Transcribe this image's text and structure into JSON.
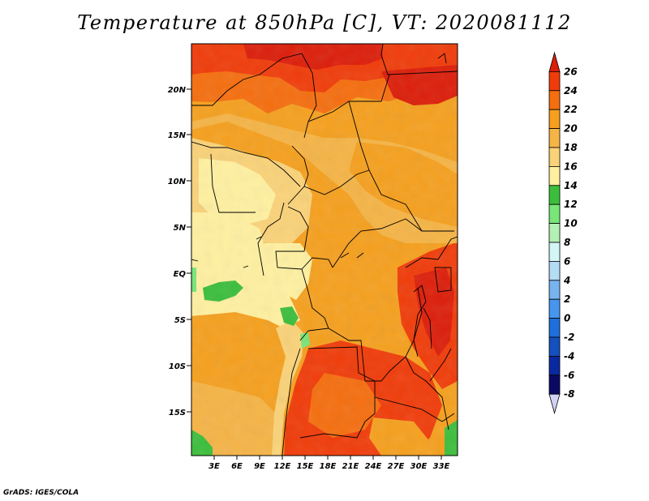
{
  "title": "Temperature at 850hPa [C], VT: 2020081112",
  "credit": "GrADS: IGES/COLA",
  "map": {
    "lat_labels": [
      "20N",
      "15N",
      "10N",
      "5N",
      "EQ",
      "5S",
      "10S",
      "15S"
    ],
    "lon_labels": [
      "3E",
      "6E",
      "9E",
      "12E",
      "15E",
      "18E",
      "21E",
      "24E",
      "27E",
      "30E",
      "33E"
    ]
  },
  "colorbar": {
    "levels": [
      "26",
      "24",
      "22",
      "20",
      "18",
      "16",
      "14",
      "12",
      "10",
      "8",
      "6",
      "4",
      "2",
      "0",
      "-2",
      "-4",
      "-6",
      "-8"
    ],
    "colors": [
      "#dc1e0a",
      "#f03c0a",
      "#f56e0f",
      "#f5a01e",
      "#f5b446",
      "#fad278",
      "#fff0a0",
      "#3cbe3c",
      "#78e678",
      "#b4f0b4",
      "#d2f5f5",
      "#b4dcf5",
      "#78b4f0",
      "#4696f0",
      "#1e6edc",
      "#1450be",
      "#0a28a0",
      "#0a0a64",
      "#d2d2f5"
    ]
  }
}
